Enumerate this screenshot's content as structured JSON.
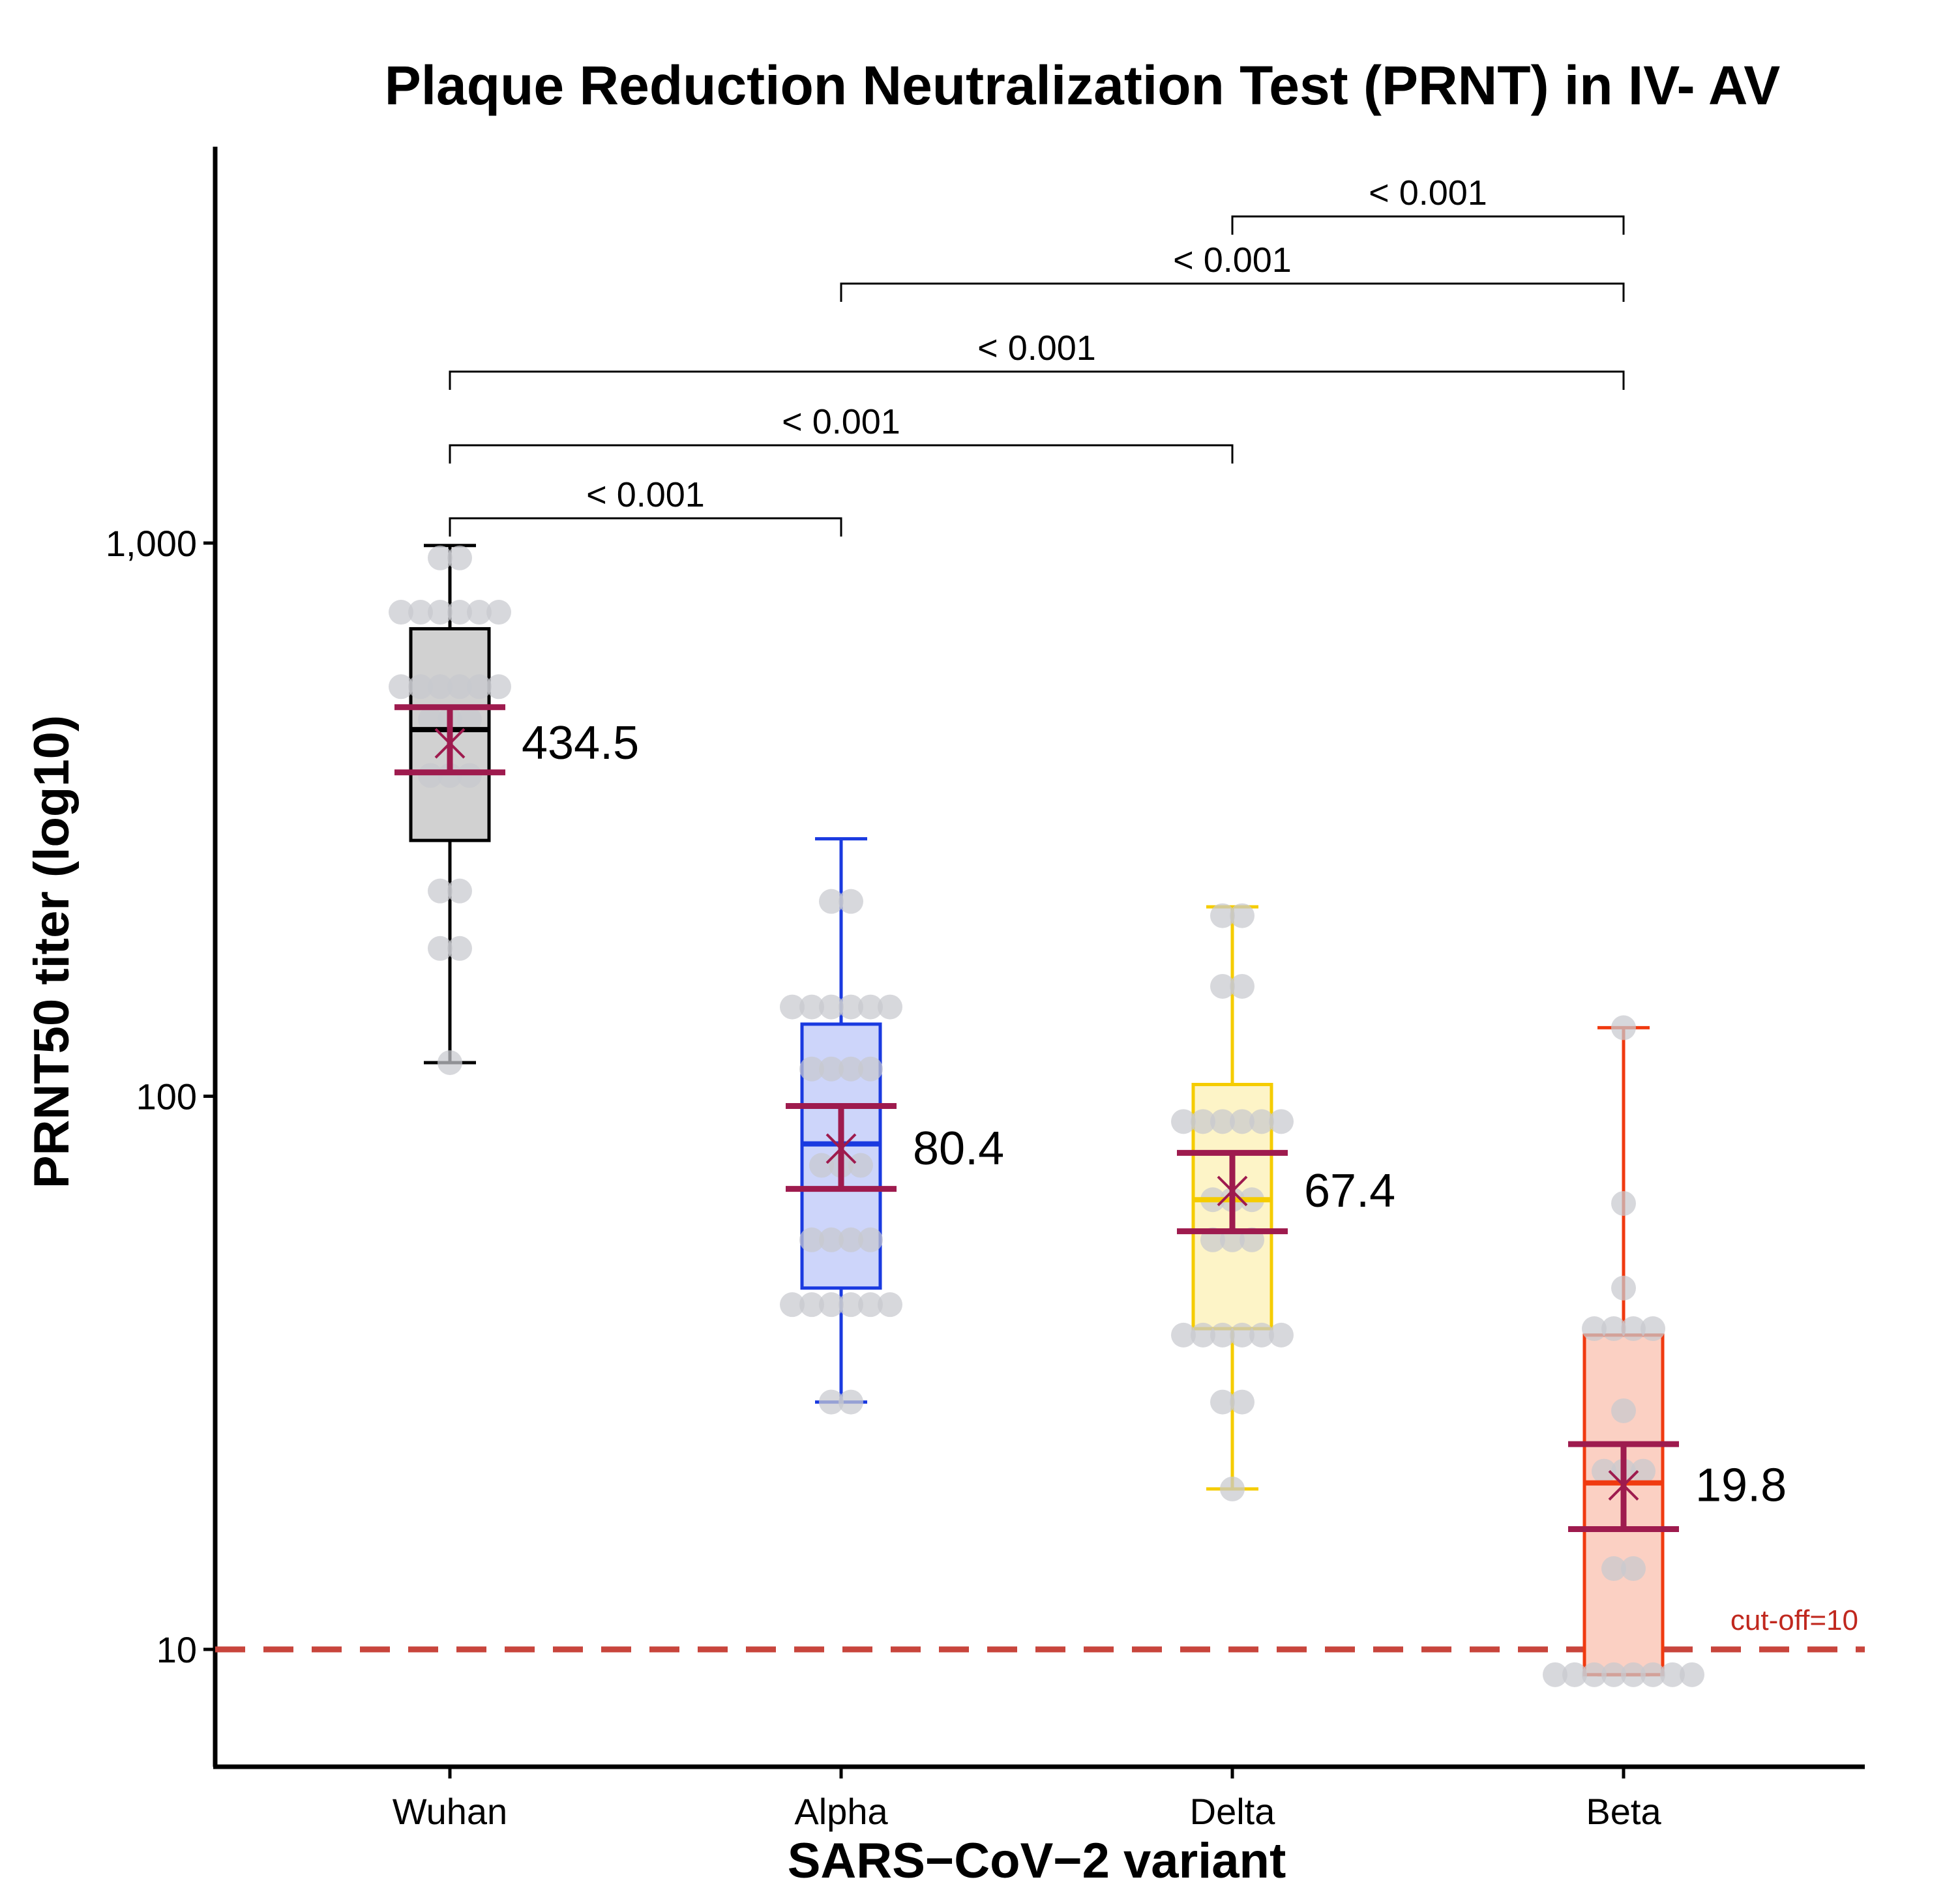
{
  "chart_data": {
    "type": "box",
    "title": "Plaque Reduction Neutralization Test (PRNT) in IV- AV",
    "xlabel": "SARS−CoV−2 variant",
    "ylabel": "PRNT50 titer (log10)",
    "y_scale": "log10",
    "ylim": [
      5.6,
      4700
    ],
    "y_ticks": [
      {
        "value": 10,
        "label": "10"
      },
      {
        "value": 100,
        "label": "100"
      },
      {
        "value": 1000,
        "label": "1,000"
      }
    ],
    "categories": [
      "Wuhan",
      "Alpha",
      "Delta",
      "Beta"
    ],
    "series": [
      {
        "name": "Wuhan",
        "color": "#000000",
        "fill": "#d1d1d1",
        "whisker_low": 115,
        "q1": 290,
        "median": 460,
        "q3": 700,
        "whisker_high": 990,
        "mean": 434.5,
        "mean_label": "434.5",
        "ci_low": 385,
        "ci_high": 505,
        "points": [
          {
            "v": 115,
            "n": 1
          },
          {
            "v": 185,
            "n": 2
          },
          {
            "v": 235,
            "n": 2
          },
          {
            "v": 380,
            "n": 3
          },
          {
            "v": 480,
            "n": 3
          },
          {
            "v": 550,
            "n": 6
          },
          {
            "v": 750,
            "n": 6
          },
          {
            "v": 940,
            "n": 2
          }
        ]
      },
      {
        "name": "Alpha",
        "color": "#1a3ae0",
        "fill": "#cdd5fa",
        "whisker_low": 28,
        "q1": 45,
        "median": 82,
        "q3": 135,
        "whisker_high": 292,
        "mean": 80.4,
        "mean_label": "80.4",
        "ci_low": 68,
        "ci_high": 96,
        "points": [
          {
            "v": 28,
            "n": 2
          },
          {
            "v": 42,
            "n": 6
          },
          {
            "v": 55,
            "n": 4
          },
          {
            "v": 75,
            "n": 3
          },
          {
            "v": 112,
            "n": 4
          },
          {
            "v": 145,
            "n": 6
          },
          {
            "v": 225,
            "n": 2
          }
        ]
      },
      {
        "name": "Delta",
        "color": "#f5cc00",
        "fill": "#fdf4c7",
        "whisker_low": 19.5,
        "q1": 38,
        "median": 65,
        "q3": 105,
        "whisker_high": 220,
        "mean": 67.4,
        "mean_label": "67.4",
        "ci_low": 57,
        "ci_high": 79,
        "points": [
          {
            "v": 19.5,
            "n": 1
          },
          {
            "v": 28,
            "n": 2
          },
          {
            "v": 37,
            "n": 6
          },
          {
            "v": 55,
            "n": 3
          },
          {
            "v": 65,
            "n": 3
          },
          {
            "v": 90,
            "n": 6
          },
          {
            "v": 158,
            "n": 2
          },
          {
            "v": 212,
            "n": 2
          }
        ]
      },
      {
        "name": "Beta",
        "color": "#f03a10",
        "fill": "#fbd0c3",
        "whisker_low": 9,
        "q1": 9,
        "median": 20,
        "q3": 37,
        "whisker_high": 133,
        "mean": 19.8,
        "mean_label": "19.8",
        "ci_low": 16.5,
        "ci_high": 23.5,
        "points": [
          {
            "v": 9,
            "n": 8
          },
          {
            "v": 14,
            "n": 2
          },
          {
            "v": 21,
            "n": 3
          },
          {
            "v": 27,
            "n": 1
          },
          {
            "v": 38,
            "n": 4
          },
          {
            "v": 45,
            "n": 1
          },
          {
            "v": 64,
            "n": 1
          },
          {
            "v": 133,
            "n": 1
          }
        ]
      }
    ],
    "mean_style": {
      "color": "#9e1b4e"
    },
    "point_color": "#c8c9cf",
    "reference_line": {
      "value": 10,
      "label": "cut-off=10",
      "color": "#c8453c"
    },
    "comparisons": [
      {
        "from": "Wuhan",
        "to": "Alpha",
        "label": "< 0.001"
      },
      {
        "from": "Wuhan",
        "to": "Delta",
        "label": "< 0.001"
      },
      {
        "from": "Wuhan",
        "to": "Beta",
        "label": "< 0.001"
      },
      {
        "from": "Alpha",
        "to": "Beta",
        "label": "< 0.001"
      },
      {
        "from": "Delta",
        "to": "Beta",
        "label": "< 0.001"
      }
    ]
  }
}
